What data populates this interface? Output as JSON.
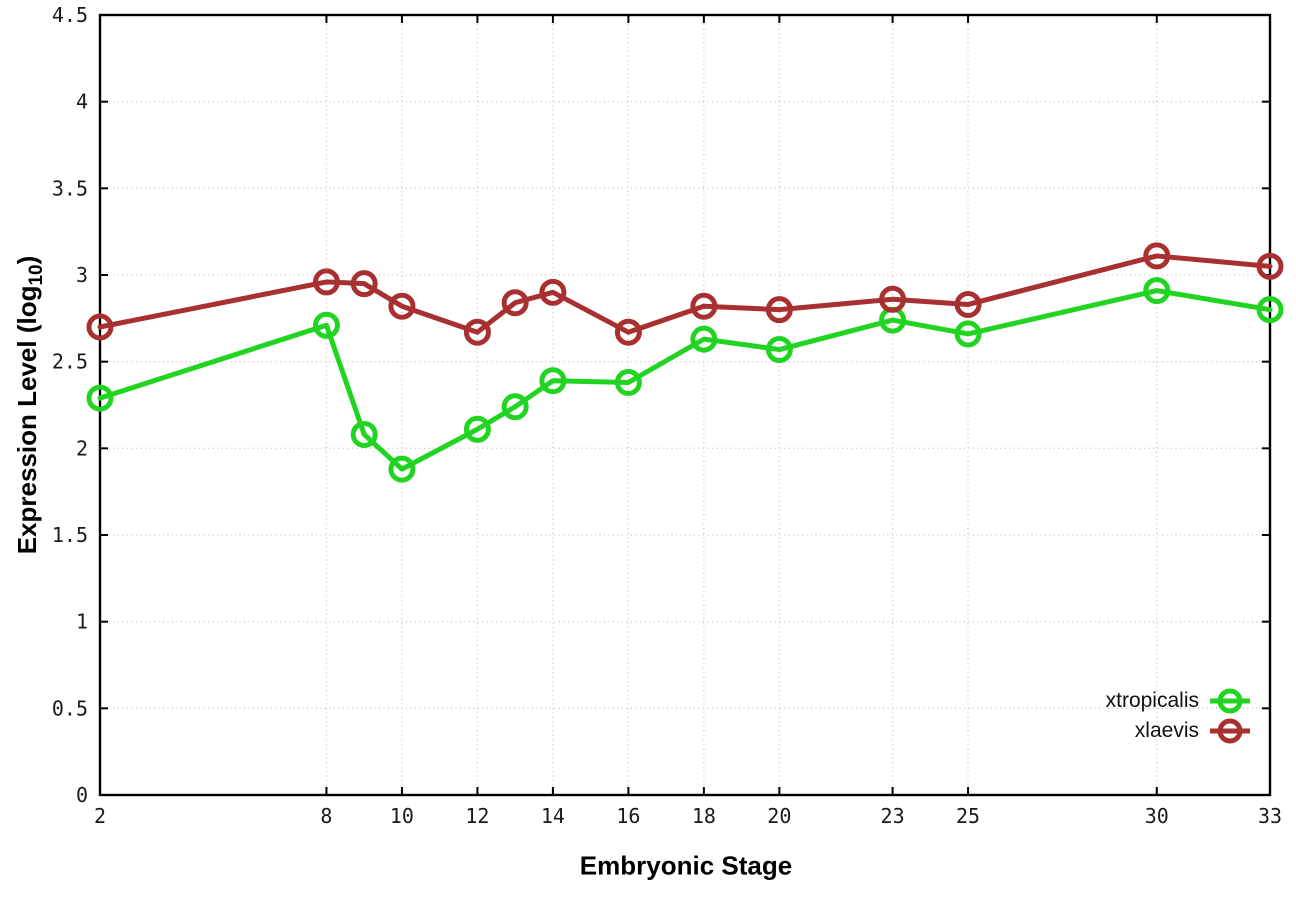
{
  "chart_data": {
    "type": "line",
    "xlabel": "Embryonic Stage",
    "ylabel_main": "Expression Level (log",
    "ylabel_sub": "10",
    "ylabel_suffix": ")",
    "xlim": [
      2,
      33
    ],
    "ylim": [
      0,
      4.5
    ],
    "grid": true,
    "legend_position": "bottom-right",
    "x": [
      2,
      8,
      9,
      10,
      12,
      13,
      14,
      16,
      18,
      20,
      23,
      25,
      30,
      33
    ],
    "xtick_values": [
      2,
      8,
      10,
      12,
      14,
      16,
      18,
      20,
      23,
      25,
      30,
      33
    ],
    "xtick_labels": [
      "2",
      "8",
      "10",
      "12",
      "14",
      "16",
      "18",
      "20",
      "23",
      "25",
      "30",
      "33"
    ],
    "ytick_values": [
      0,
      0.5,
      1,
      1.5,
      2,
      2.5,
      3,
      3.5,
      4,
      4.5
    ],
    "ytick_labels": [
      "0",
      "0.5",
      "1",
      "1.5",
      "2",
      "2.5",
      "3",
      "3.5",
      "4",
      "4.5"
    ],
    "series": [
      {
        "name": "xtropicalis",
        "color": "#22d422",
        "values": [
          2.29,
          2.71,
          2.08,
          1.88,
          2.11,
          2.24,
          2.39,
          2.38,
          2.63,
          2.57,
          2.74,
          2.66,
          2.91,
          2.8
        ]
      },
      {
        "name": "xlaevis",
        "color": "#a83030",
        "values": [
          2.7,
          2.96,
          2.95,
          2.82,
          2.67,
          2.84,
          2.9,
          2.67,
          2.82,
          2.8,
          2.86,
          2.83,
          3.11,
          3.05
        ]
      }
    ],
    "colors": {
      "grid": "#c4c4c4",
      "axis": "#000000",
      "background": "#ffffff"
    }
  }
}
